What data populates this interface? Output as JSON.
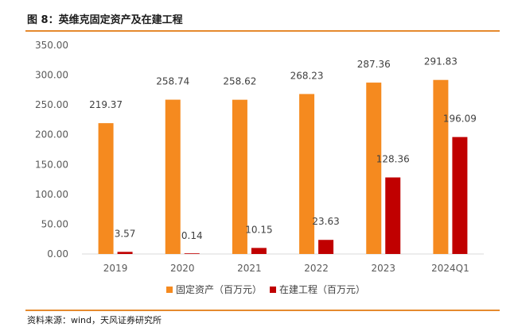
{
  "figure": {
    "title": "图 8：英维克固定资产及在建工程",
    "source": "资料来源：wind，天风证券研究所"
  },
  "colors": {
    "accent": "#e58a2e",
    "series1": "#f58a1f",
    "series2": "#c00000"
  },
  "chart_data": {
    "type": "bar",
    "title": "英维克固定资产及在建工程",
    "categories": [
      "2019",
      "2020",
      "2021",
      "2022",
      "2023",
      "2024Q1"
    ],
    "series": [
      {
        "name": "固定资产（百万元）",
        "values": [
          219.37,
          258.74,
          258.62,
          268.23,
          287.36,
          291.83
        ],
        "labels": [
          "219.37",
          "258.74",
          "258.62",
          "268.23",
          "287.36",
          "291.83"
        ]
      },
      {
        "name": "在建工程（百万元）",
        "values": [
          3.57,
          0.14,
          10.15,
          23.63,
          128.36,
          196.09
        ],
        "labels": [
          "3.57",
          "0.14",
          "10.15",
          "23.63",
          "128.36",
          "196.09"
        ]
      }
    ],
    "ylim": [
      0,
      350
    ],
    "yticks": [
      "0.00",
      "50.00",
      "100.00",
      "150.00",
      "200.00",
      "250.00",
      "300.00",
      "350.00"
    ],
    "ytick_values": [
      0,
      50,
      100,
      150,
      200,
      250,
      300,
      350
    ],
    "grid": false,
    "legend": "bottom"
  }
}
